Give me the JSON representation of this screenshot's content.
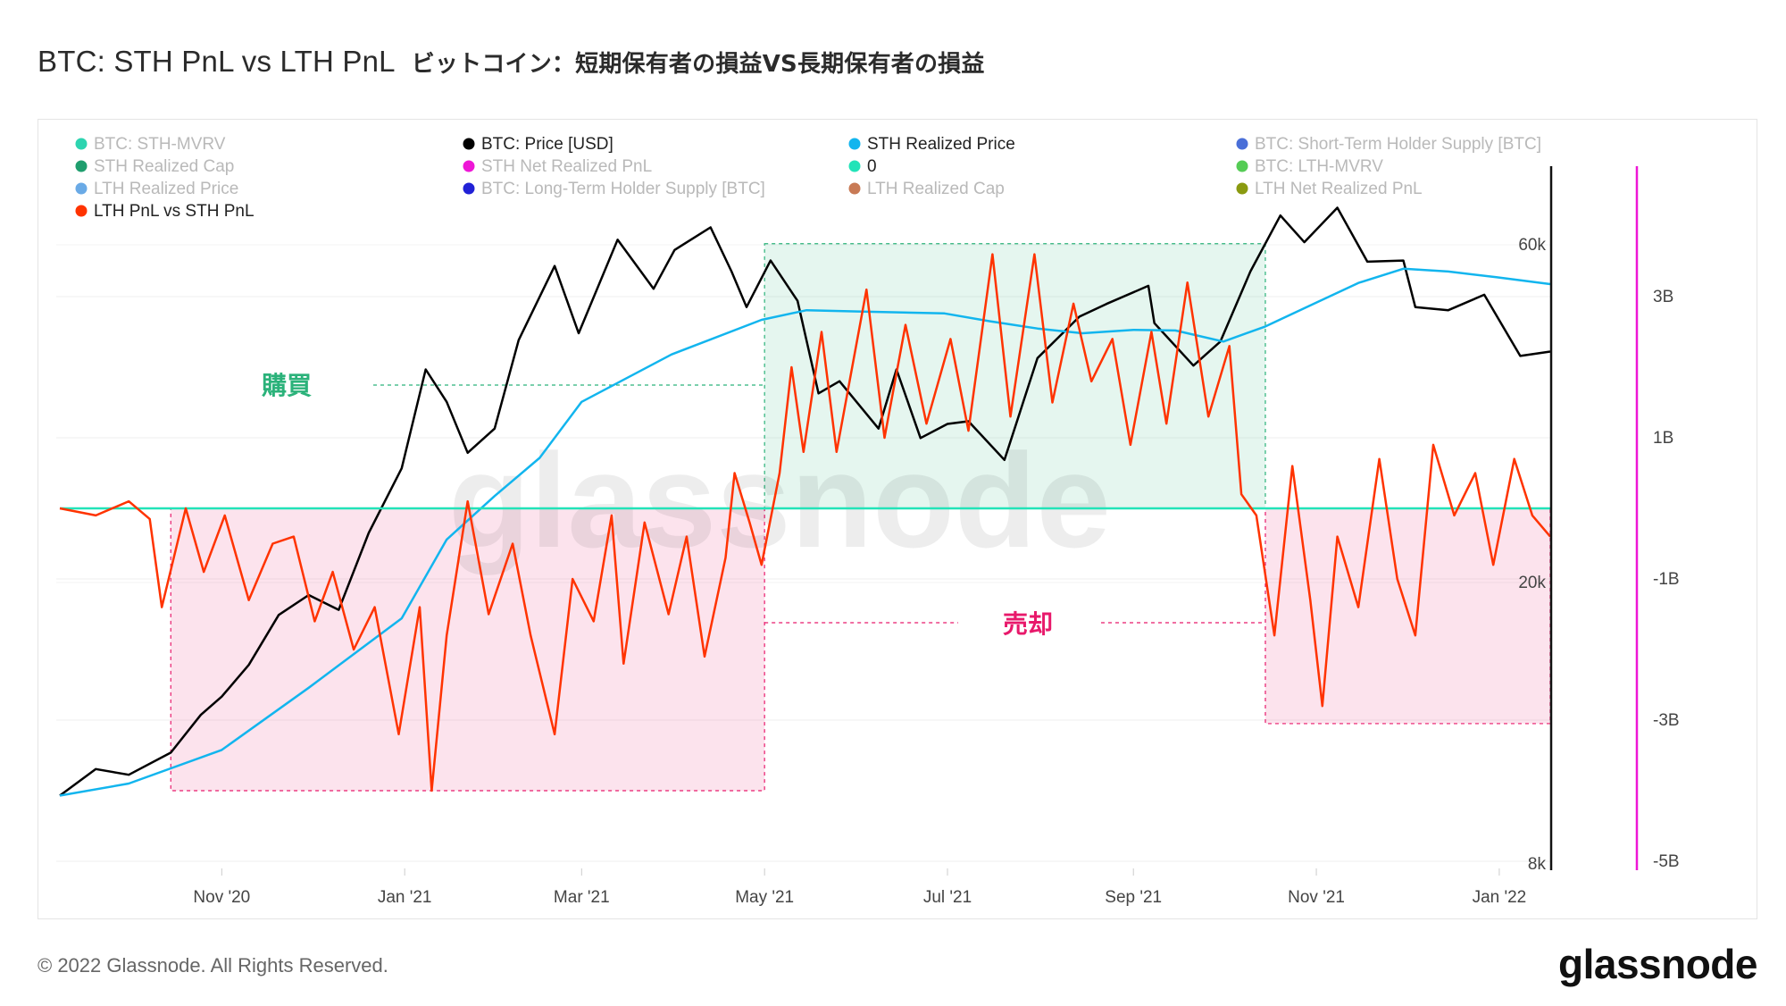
{
  "title": "BTC: STH PnL vs LTH PnL",
  "title_jp": "ビットコイン：短期保有者の損益VS長期保有者の損益",
  "copyright": "© 2022 Glassnode. All Rights Reserved.",
  "brand": "glassnode",
  "watermark": "glassnode",
  "annotations": {
    "buy_label": "購買",
    "sell_label": "売却",
    "buy_color": "#2bb27a",
    "sell_color": "#e8196b"
  },
  "legend": [
    {
      "label": "BTC: STH-MVRV",
      "color": "#2dd4b0",
      "active": false
    },
    {
      "label": "BTC: Price [USD]",
      "color": "#000000",
      "active": true
    },
    {
      "label": "STH Realized Price",
      "color": "#12b5ee",
      "active": true
    },
    {
      "label": "BTC: Short-Term Holder Supply [BTC]",
      "color": "#4a6fd8",
      "active": false
    },
    {
      "label": "STH Realized Cap",
      "color": "#1f9e6e",
      "active": false
    },
    {
      "label": "STH Net Realized PnL",
      "color": "#ee16d6",
      "active": false
    },
    {
      "label": "0",
      "color": "#22e3b8",
      "active": true
    },
    {
      "label": "BTC: LTH-MVRV",
      "color": "#55cc55",
      "active": false
    },
    {
      "label": "LTH Realized Price",
      "color": "#6aaae6",
      "active": false
    },
    {
      "label": "BTC: Long-Term Holder Supply [BTC]",
      "color": "#2121d6",
      "active": false
    },
    {
      "label": "LTH Realized Cap",
      "color": "#c87a55",
      "active": false
    },
    {
      "label": "LTH Net Realized PnL",
      "color": "#8a9a10",
      "active": false
    },
    {
      "label": "LTH PnL vs STH PnL",
      "color": "#ff3300",
      "active": true
    }
  ],
  "chart_data": {
    "type": "line",
    "title": "BTC: STH PnL vs LTH PnL",
    "x_ticks": [
      "Nov '20",
      "Jan '21",
      "Mar '21",
      "May '21",
      "Jul '21",
      "Sep '21",
      "Nov '21",
      "Jan '22"
    ],
    "x_tick_dates": [
      "2020-11-01",
      "2021-01-01",
      "2021-03-01",
      "2021-05-01",
      "2021-07-01",
      "2021-09-01",
      "2021-11-01",
      "2022-01-01"
    ],
    "x_range": [
      "2020-09-08",
      "2022-01-18"
    ],
    "y_left_scale": "log",
    "y_left_ticks": [
      "8k",
      "20k",
      "60k"
    ],
    "y_left_tick_values": [
      8000,
      20000,
      60000
    ],
    "y_left_range": [
      8000,
      68000
    ],
    "y_right_ticks": [
      "3B",
      "1B",
      "-1B",
      "-3B",
      "-5B"
    ],
    "y_right_tick_values": [
      3,
      1,
      -1,
      -3,
      -5
    ],
    "y_right_unit": "B",
    "y_right_range": [
      -5,
      4.6
    ],
    "series": [
      {
        "name": "BTC: Price [USD]",
        "axis": "left",
        "color": "#000000",
        "points": [
          [
            "2020-09-08",
            10000
          ],
          [
            "2020-09-20",
            10900
          ],
          [
            "2020-10-01",
            10700
          ],
          [
            "2020-10-15",
            11500
          ],
          [
            "2020-10-25",
            13000
          ],
          [
            "2020-11-01",
            13800
          ],
          [
            "2020-11-10",
            15300
          ],
          [
            "2020-11-20",
            18000
          ],
          [
            "2020-11-30",
            19200
          ],
          [
            "2020-12-10",
            18300
          ],
          [
            "2020-12-20",
            23500
          ],
          [
            "2020-12-31",
            29000
          ],
          [
            "2021-01-08",
            40000
          ],
          [
            "2021-01-15",
            36000
          ],
          [
            "2021-01-22",
            30500
          ],
          [
            "2021-01-31",
            33000
          ],
          [
            "2021-02-08",
            44000
          ],
          [
            "2021-02-20",
            56000
          ],
          [
            "2021-02-28",
            45000
          ],
          [
            "2021-03-13",
            61000
          ],
          [
            "2021-03-25",
            52000
          ],
          [
            "2021-04-01",
            59000
          ],
          [
            "2021-04-13",
            63500
          ],
          [
            "2021-04-20",
            55000
          ],
          [
            "2021-04-25",
            49000
          ],
          [
            "2021-05-03",
            57000
          ],
          [
            "2021-05-12",
            50000
          ],
          [
            "2021-05-19",
            37000
          ],
          [
            "2021-05-26",
            38500
          ],
          [
            "2021-06-08",
            33000
          ],
          [
            "2021-06-14",
            40000
          ],
          [
            "2021-06-22",
            32000
          ],
          [
            "2021-07-01",
            33500
          ],
          [
            "2021-07-08",
            33800
          ],
          [
            "2021-07-20",
            29800
          ],
          [
            "2021-07-31",
            41500
          ],
          [
            "2021-08-14",
            47500
          ],
          [
            "2021-08-23",
            49500
          ],
          [
            "2021-09-06",
            52500
          ],
          [
            "2021-09-08",
            46500
          ],
          [
            "2021-09-21",
            40500
          ],
          [
            "2021-09-30",
            43800
          ],
          [
            "2021-10-10",
            55000
          ],
          [
            "2021-10-20",
            66000
          ],
          [
            "2021-10-28",
            60500
          ],
          [
            "2021-11-08",
            67700
          ],
          [
            "2021-11-18",
            56800
          ],
          [
            "2021-11-30",
            57000
          ],
          [
            "2021-12-04",
            49000
          ],
          [
            "2021-12-15",
            48500
          ],
          [
            "2021-12-27",
            51000
          ],
          [
            "2022-01-08",
            41800
          ],
          [
            "2022-01-18",
            42400
          ]
        ]
      },
      {
        "name": "STH Realized Price",
        "axis": "left",
        "color": "#12b5ee",
        "points": [
          [
            "2020-09-08",
            10000
          ],
          [
            "2020-10-01",
            10400
          ],
          [
            "2020-11-01",
            11600
          ],
          [
            "2020-11-30",
            14200
          ],
          [
            "2020-12-31",
            17800
          ],
          [
            "2021-01-15",
            23000
          ],
          [
            "2021-01-31",
            26500
          ],
          [
            "2021-02-15",
            30000
          ],
          [
            "2021-03-01",
            36000
          ],
          [
            "2021-03-31",
            42000
          ],
          [
            "2021-04-30",
            47000
          ],
          [
            "2021-05-15",
            48500
          ],
          [
            "2021-06-01",
            48300
          ],
          [
            "2021-06-30",
            48000
          ],
          [
            "2021-07-15",
            46800
          ],
          [
            "2021-07-31",
            45700
          ],
          [
            "2021-08-15",
            45000
          ],
          [
            "2021-09-01",
            45500
          ],
          [
            "2021-09-15",
            45400
          ],
          [
            "2021-10-01",
            43800
          ],
          [
            "2021-10-15",
            46000
          ],
          [
            "2021-10-31",
            49500
          ],
          [
            "2021-11-15",
            53000
          ],
          [
            "2021-11-30",
            55500
          ],
          [
            "2021-12-15",
            55000
          ],
          [
            "2021-12-31",
            54000
          ],
          [
            "2022-01-18",
            52800
          ]
        ]
      },
      {
        "name": "0",
        "axis": "right",
        "color": "#22e3b8",
        "constant": 0
      },
      {
        "name": "LTH PnL vs STH PnL",
        "axis": "right",
        "color": "#ff3300",
        "points": [
          [
            "2020-09-08",
            0.0
          ],
          [
            "2020-09-20",
            -0.1
          ],
          [
            "2020-10-01",
            0.1
          ],
          [
            "2020-10-08",
            -0.15
          ],
          [
            "2020-10-12",
            -1.4
          ],
          [
            "2020-10-20",
            0.0
          ],
          [
            "2020-10-26",
            -0.9
          ],
          [
            "2020-11-02",
            -0.1
          ],
          [
            "2020-11-10",
            -1.3
          ],
          [
            "2020-11-18",
            -0.5
          ],
          [
            "2020-11-25",
            -0.4
          ],
          [
            "2020-12-02",
            -1.6
          ],
          [
            "2020-12-08",
            -0.9
          ],
          [
            "2020-12-15",
            -2.0
          ],
          [
            "2020-12-22",
            -1.4
          ],
          [
            "2020-12-30",
            -3.2
          ],
          [
            "2021-01-06",
            -1.4
          ],
          [
            "2021-01-10",
            -4.0
          ],
          [
            "2021-01-15",
            -1.8
          ],
          [
            "2021-01-22",
            0.1
          ],
          [
            "2021-01-29",
            -1.5
          ],
          [
            "2021-02-06",
            -0.5
          ],
          [
            "2021-02-12",
            -1.8
          ],
          [
            "2021-02-20",
            -3.2
          ],
          [
            "2021-02-26",
            -1.0
          ],
          [
            "2021-03-05",
            -1.6
          ],
          [
            "2021-03-11",
            -0.1
          ],
          [
            "2021-03-15",
            -2.2
          ],
          [
            "2021-03-22",
            -0.2
          ],
          [
            "2021-03-30",
            -1.5
          ],
          [
            "2021-04-05",
            -0.4
          ],
          [
            "2021-04-11",
            -2.1
          ],
          [
            "2021-04-18",
            -0.7
          ],
          [
            "2021-04-21",
            0.5
          ],
          [
            "2021-04-26",
            -0.2
          ],
          [
            "2021-04-30",
            -0.8
          ],
          [
            "2021-05-06",
            0.5
          ],
          [
            "2021-05-10",
            2.0
          ],
          [
            "2021-05-14",
            0.8
          ],
          [
            "2021-05-20",
            2.5
          ],
          [
            "2021-05-25",
            0.8
          ],
          [
            "2021-06-04",
            3.1
          ],
          [
            "2021-06-10",
            1.0
          ],
          [
            "2021-06-17",
            2.6
          ],
          [
            "2021-06-24",
            1.2
          ],
          [
            "2021-07-02",
            2.4
          ],
          [
            "2021-07-08",
            1.1
          ],
          [
            "2021-07-16",
            3.6
          ],
          [
            "2021-07-22",
            1.3
          ],
          [
            "2021-07-30",
            3.6
          ],
          [
            "2021-08-05",
            1.5
          ],
          [
            "2021-08-12",
            2.9
          ],
          [
            "2021-08-18",
            1.8
          ],
          [
            "2021-08-25",
            2.4
          ],
          [
            "2021-08-31",
            0.9
          ],
          [
            "2021-09-07",
            2.5
          ],
          [
            "2021-09-12",
            1.2
          ],
          [
            "2021-09-19",
            3.2
          ],
          [
            "2021-09-26",
            1.3
          ],
          [
            "2021-10-03",
            2.3
          ],
          [
            "2021-10-07",
            0.2
          ],
          [
            "2021-10-12",
            -0.1
          ],
          [
            "2021-10-18",
            -1.8
          ],
          [
            "2021-10-24",
            0.6
          ],
          [
            "2021-10-30",
            -1.3
          ],
          [
            "2021-11-03",
            -2.8
          ],
          [
            "2021-11-08",
            -0.4
          ],
          [
            "2021-11-15",
            -1.4
          ],
          [
            "2021-11-22",
            0.7
          ],
          [
            "2021-11-28",
            -1.0
          ],
          [
            "2021-12-04",
            -1.8
          ],
          [
            "2021-12-10",
            0.9
          ],
          [
            "2021-12-17",
            -0.1
          ],
          [
            "2021-12-24",
            0.5
          ],
          [
            "2021-12-30",
            -0.8
          ],
          [
            "2022-01-06",
            0.7
          ],
          [
            "2022-01-12",
            -0.1
          ],
          [
            "2022-01-18",
            -0.4
          ]
        ]
      }
    ],
    "highlight_regions": [
      {
        "label": "購買",
        "type": "buy",
        "from": "2021-05-01",
        "to": "2021-10-15",
        "y_from": 0,
        "y_to": 3.75,
        "axis": "right"
      },
      {
        "label": "売却",
        "type": "sell",
        "from": "2020-10-15",
        "to": "2021-05-01",
        "y_from": -4.0,
        "y_to": 0,
        "axis": "right"
      },
      {
        "label": "売却",
        "type": "sell",
        "from": "2021-10-15",
        "to": "2022-01-18",
        "y_from": -3.05,
        "y_to": 0,
        "axis": "right"
      }
    ]
  }
}
